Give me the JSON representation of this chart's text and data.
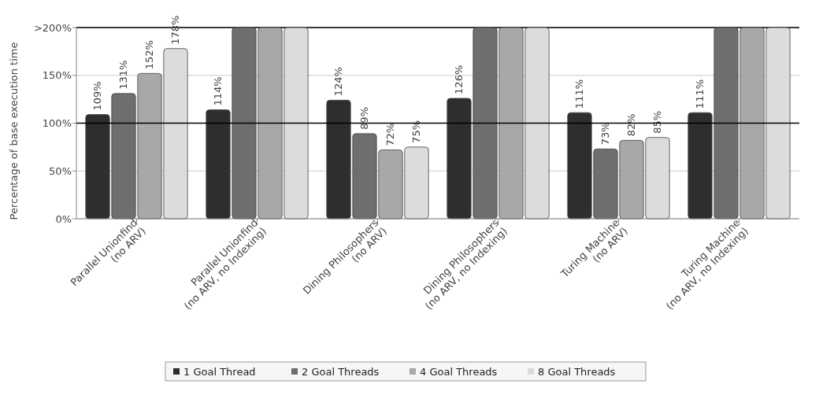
{
  "chart_data": {
    "type": "bar",
    "ylabel": "Percentage of base execution time",
    "categories": [
      "Parallel Unionfind\n(no ARV)",
      "Parallel Unionfind\n(no ARV, no Indexing)",
      "Dining Philosophers\n(no ARV)",
      "Dining Philosophers\n(no ARV, no Indexing)",
      "Turing Machine\n(no ARV)",
      "Turing Machine\n(no ARV, no Indexing)"
    ],
    "series": [
      {
        "name": "1 Goal Thread",
        "color": "#2e2e2e",
        "values": [
          109,
          114,
          124,
          126,
          111,
          111
        ],
        "value_labels": [
          "109%",
          "114%",
          "124%",
          "126%",
          "111%",
          "111%"
        ]
      },
      {
        "name": "2 Goal Threads",
        "color": "#6e6e6e",
        "values": [
          131,
          200,
          89,
          200,
          73,
          200
        ],
        "value_labels": [
          "131%",
          null,
          "89%",
          null,
          "73%",
          null
        ]
      },
      {
        "name": "4 Goal Threads",
        "color": "#a8a8a8",
        "values": [
          152,
          200,
          72,
          200,
          82,
          200
        ],
        "value_labels": [
          "152%",
          null,
          "72%",
          null,
          "82%",
          null
        ]
      },
      {
        "name": "8 Goal Threads",
        "color": "#dcdcdc",
        "values": [
          178,
          200,
          75,
          200,
          85,
          200
        ],
        "value_labels": [
          "178%",
          null,
          "75%",
          null,
          "85%",
          null
        ]
      }
    ],
    "ylim": [
      0,
      200
    ],
    "yticks": [
      {
        "value": 0,
        "label": "0%"
      },
      {
        "value": 50,
        "label": "50%"
      },
      {
        "value": 100,
        "label": "100%"
      },
      {
        "value": 150,
        "label": "150%"
      },
      {
        "value": 200,
        "label": ">200%"
      }
    ],
    "ref_lines": [
      {
        "axis": "y",
        "value": 100,
        "color": "#000000"
      }
    ],
    "grid": "y",
    "legend": "bottom"
  }
}
